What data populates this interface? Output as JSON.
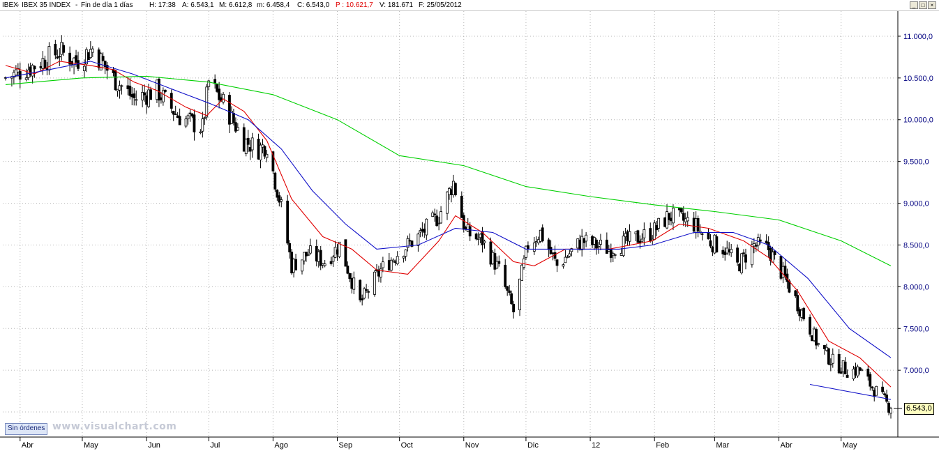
{
  "header": {
    "symbol": "IBEX",
    "name": "IBEX 35 INDEX",
    "period": "Fin de día 1 días",
    "h": "H: 17:38",
    "a": "A: 6.543,1",
    "m": "M: 6.612,8",
    "mlow": "m: 6.458,4",
    "c": "C: 6.543,0",
    "p": "P : 10.621,7",
    "v": "V: 181.671",
    "f": "F: 25/05/2012"
  },
  "controls": {
    "minimize": "_",
    "maximize": "□",
    "close": "×"
  },
  "footer": {
    "orders_label": "Sin órdenes",
    "watermark": "www.visualchart.com",
    "last_value": "6.543,0"
  },
  "colors": {
    "candle": "#000000",
    "ma_fast": "#e00000",
    "ma_mid": "#1010c8",
    "ma_slow": "#00d000",
    "trendline": "#1010c8",
    "grid": "#b4b4b4",
    "axis_text": "#000080"
  },
  "chart_data": {
    "type": "candlestick",
    "title": "IBEX 35 INDEX",
    "y_axis_ticks": [
      "11.000,0",
      "10.500,0",
      "10.000,0",
      "9.500,0",
      "9.000,0",
      "8.500,0",
      "8.000,0",
      "7.500,0",
      "7.000,0"
    ],
    "y_tick_values": [
      11000,
      10500,
      10000,
      9500,
      9000,
      8500,
      8000,
      7500,
      7000
    ],
    "ylim": [
      6200,
      11300
    ],
    "x_axis_ticks": [
      "Abr",
      "May",
      "Jun",
      "Jul",
      "Ago",
      "Sep",
      "Oct",
      "Nov",
      "Dic",
      "12",
      "Feb",
      "Mar",
      "Abr",
      "May"
    ],
    "x_tick_dates": [
      "2011-04",
      "2011-05",
      "2011-06",
      "2011-07",
      "2011-08",
      "2011-09",
      "2011-10",
      "2011-11",
      "2011-12",
      "2012-01",
      "2012-02",
      "2012-03",
      "2012-04",
      "2012-05"
    ],
    "x_range": [
      "2011-03-25",
      "2012-05-25"
    ],
    "grid": true,
    "trend_points": [
      [
        "2011-03-25",
        10500
      ],
      [
        "2011-04-08",
        10650
      ],
      [
        "2011-04-20",
        10820
      ],
      [
        "2011-04-28",
        10700
      ],
      [
        "2011-05-06",
        10850
      ],
      [
        "2011-05-16",
        10500
      ],
      [
        "2011-05-26",
        10250
      ],
      [
        "2011-06-06",
        10350
      ],
      [
        "2011-06-16",
        10050
      ],
      [
        "2011-06-28",
        9900
      ],
      [
        "2011-07-01",
        10450
      ],
      [
        "2011-07-08",
        10200
      ],
      [
        "2011-07-18",
        9750
      ],
      [
        "2011-07-25",
        9650
      ],
      [
        "2011-07-29",
        9700
      ],
      [
        "2011-08-05",
        8950
      ],
      [
        "2011-08-10",
        8250
      ],
      [
        "2011-08-18",
        8400
      ],
      [
        "2011-08-26",
        8300
      ],
      [
        "2011-09-02",
        8500
      ],
      [
        "2011-09-12",
        7800
      ],
      [
        "2011-09-22",
        8200
      ],
      [
        "2011-09-30",
        8400
      ],
      [
        "2011-10-10",
        8600
      ],
      [
        "2011-10-20",
        8850
      ],
      [
        "2011-10-27",
        9250
      ],
      [
        "2011-11-02",
        8650
      ],
      [
        "2011-11-10",
        8550
      ],
      [
        "2011-11-18",
        8200
      ],
      [
        "2011-11-25",
        7700
      ],
      [
        "2011-12-02",
        8500
      ],
      [
        "2011-12-08",
        8650
      ],
      [
        "2011-12-16",
        8250
      ],
      [
        "2011-12-28",
        8550
      ],
      [
        "2012-01-10",
        8450
      ],
      [
        "2012-01-20",
        8550
      ],
      [
        "2012-01-31",
        8650
      ],
      [
        "2012-02-08",
        8850
      ],
      [
        "2012-02-14",
        8800
      ],
      [
        "2012-02-20",
        8750
      ],
      [
        "2012-02-27",
        8550
      ],
      [
        "2012-03-06",
        8450
      ],
      [
        "2012-03-12",
        8250
      ],
      [
        "2012-03-20",
        8500
      ],
      [
        "2012-03-27",
        8450
      ],
      [
        "2012-04-05",
        8050
      ],
      [
        "2012-04-13",
        7650
      ],
      [
        "2012-04-20",
        7300
      ],
      [
        "2012-04-27",
        7100
      ],
      [
        "2012-05-04",
        7000
      ],
      [
        "2012-05-10",
        7000
      ],
      [
        "2012-05-16",
        6800
      ],
      [
        "2012-05-25",
        6543
      ]
    ],
    "series": [
      {
        "name": "",
        "color": "#e00000",
        "values": [
          [
            "2011-03-25",
            10650
          ],
          [
            "2011-04-08",
            10550
          ],
          [
            "2011-04-20",
            10700
          ],
          [
            "2011-05-05",
            10650
          ],
          [
            "2011-05-16",
            10600
          ],
          [
            "2011-05-26",
            10450
          ],
          [
            "2011-06-06",
            10350
          ],
          [
            "2011-06-20",
            10150
          ],
          [
            "2011-06-30",
            10050
          ],
          [
            "2011-07-08",
            10250
          ],
          [
            "2011-07-18",
            10100
          ],
          [
            "2011-07-29",
            9750
          ],
          [
            "2011-08-10",
            9050
          ],
          [
            "2011-08-25",
            8600
          ],
          [
            "2011-09-08",
            8450
          ],
          [
            "2011-09-20",
            8200
          ],
          [
            "2011-10-05",
            8150
          ],
          [
            "2011-10-20",
            8550
          ],
          [
            "2011-10-28",
            8850
          ],
          [
            "2011-11-10",
            8650
          ],
          [
            "2011-11-25",
            8300
          ],
          [
            "2011-12-05",
            8250
          ],
          [
            "2011-12-20",
            8450
          ],
          [
            "2012-01-10",
            8450
          ],
          [
            "2012-01-31",
            8550
          ],
          [
            "2012-02-13",
            8750
          ],
          [
            "2012-02-27",
            8700
          ],
          [
            "2012-03-15",
            8550
          ],
          [
            "2012-03-27",
            8350
          ],
          [
            "2012-04-10",
            7950
          ],
          [
            "2012-04-25",
            7350
          ],
          [
            "2012-05-10",
            7150
          ],
          [
            "2012-05-25",
            6800
          ]
        ]
      },
      {
        "name": "",
        "color": "#1010c8",
        "values": [
          [
            "2011-03-25",
            10500
          ],
          [
            "2011-04-15",
            10600
          ],
          [
            "2011-05-05",
            10700
          ],
          [
            "2011-05-25",
            10550
          ],
          [
            "2011-06-15",
            10350
          ],
          [
            "2011-07-01",
            10200
          ],
          [
            "2011-07-20",
            10000
          ],
          [
            "2011-08-05",
            9650
          ],
          [
            "2011-08-20",
            9150
          ],
          [
            "2011-09-05",
            8750
          ],
          [
            "2011-09-20",
            8450
          ],
          [
            "2011-10-10",
            8500
          ],
          [
            "2011-10-28",
            8700
          ],
          [
            "2011-11-15",
            8650
          ],
          [
            "2011-12-01",
            8450
          ],
          [
            "2011-12-20",
            8450
          ],
          [
            "2012-01-15",
            8450
          ],
          [
            "2012-01-31",
            8500
          ],
          [
            "2012-02-20",
            8650
          ],
          [
            "2012-03-10",
            8650
          ],
          [
            "2012-03-27",
            8500
          ],
          [
            "2012-04-15",
            8100
          ],
          [
            "2012-05-05",
            7500
          ],
          [
            "2012-05-25",
            7150
          ]
        ]
      },
      {
        "name": "",
        "color": "#00d000",
        "values": [
          [
            "2011-03-25",
            10420
          ],
          [
            "2011-05-01",
            10500
          ],
          [
            "2011-06-01",
            10520
          ],
          [
            "2011-07-01",
            10450
          ],
          [
            "2011-08-01",
            10300
          ],
          [
            "2011-09-01",
            10000
          ],
          [
            "2011-10-01",
            9570
          ],
          [
            "2011-11-01",
            9450
          ],
          [
            "2011-12-01",
            9200
          ],
          [
            "2012-01-01",
            9080
          ],
          [
            "2012-02-01",
            8980
          ],
          [
            "2012-03-01",
            8900
          ],
          [
            "2012-04-01",
            8800
          ],
          [
            "2012-05-01",
            8550
          ],
          [
            "2012-05-25",
            8250
          ]
        ]
      },
      {
        "name": "",
        "color": "#1010c8",
        "values": [
          [
            "2012-04-16",
            6830
          ],
          [
            "2012-05-25",
            6650
          ]
        ]
      }
    ],
    "last": 6543.0
  }
}
